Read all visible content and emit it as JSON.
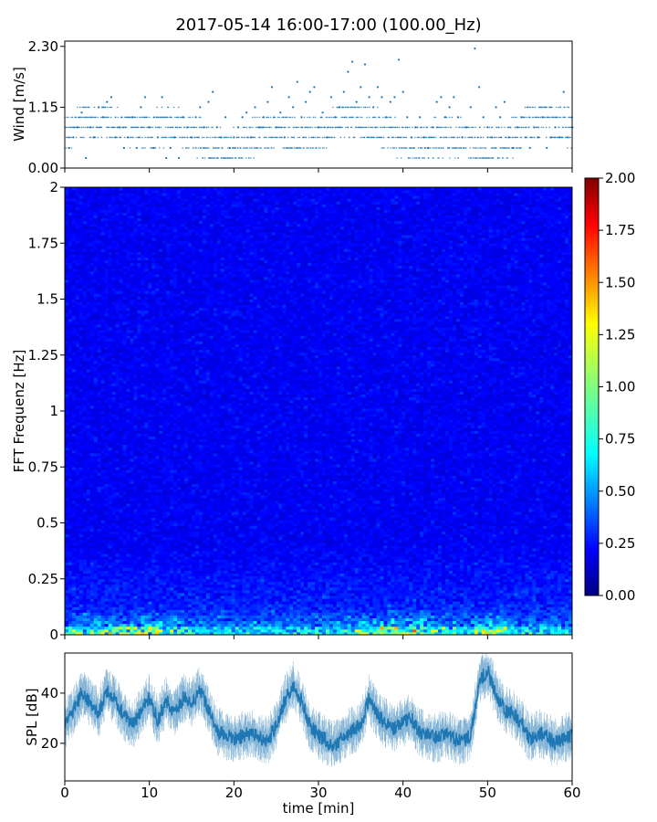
{
  "title": "2017-05-14 16:00-17:00 (100.00_Hz)",
  "chart_data": [
    {
      "type": "scatter",
      "name": "wind",
      "ylabel": "Wind [m/s]",
      "ylim": [
        0,
        2.4
      ],
      "xlim": [
        0,
        60
      ],
      "yticks": [
        0,
        1.15,
        2.3
      ],
      "ytick_labels": [
        "0.00",
        "1.15",
        "2.30"
      ],
      "color": "#1f77b4",
      "points": [
        [
          0.5,
          0.38
        ],
        [
          1.0,
          0.58
        ],
        [
          1.5,
          0.77
        ],
        [
          2.0,
          1.05
        ],
        [
          2.5,
          0.19
        ],
        [
          3.0,
          0.77
        ],
        [
          3.5,
          0.58
        ],
        [
          4.0,
          1.15
        ],
        [
          4.5,
          0.96
        ],
        [
          5.0,
          1.25
        ],
        [
          5.5,
          1.34
        ],
        [
          6.0,
          0.58
        ],
        [
          6.5,
          0.77
        ],
        [
          7.0,
          0.38
        ],
        [
          7.5,
          0.58
        ],
        [
          8.0,
          0.96
        ],
        [
          8.5,
          0.38
        ],
        [
          9.0,
          1.15
        ],
        [
          9.5,
          1.34
        ],
        [
          10.0,
          0.77
        ],
        [
          10.5,
          0.38
        ],
        [
          11.0,
          0.58
        ],
        [
          11.5,
          1.34
        ],
        [
          12.0,
          0.19
        ],
        [
          12.5,
          0.38
        ],
        [
          13.0,
          0.58
        ],
        [
          13.5,
          0.19
        ],
        [
          14.0,
          0.96
        ],
        [
          14.5,
          0.77
        ],
        [
          15.0,
          0.58
        ],
        [
          15.5,
          0.96
        ],
        [
          16.0,
          1.15
        ],
        [
          16.5,
          0.77
        ],
        [
          17.0,
          1.25
        ],
        [
          17.5,
          1.44
        ],
        [
          18.0,
          0.77
        ],
        [
          18.5,
          0.58
        ],
        [
          19.0,
          0.96
        ],
        [
          19.5,
          0.38
        ],
        [
          20.0,
          0.58
        ],
        [
          20.5,
          0.77
        ],
        [
          21.0,
          0.96
        ],
        [
          21.5,
          1.05
        ],
        [
          22.0,
          0.58
        ],
        [
          22.5,
          1.15
        ],
        [
          23.0,
          0.77
        ],
        [
          23.5,
          0.96
        ],
        [
          24.0,
          1.25
        ],
        [
          24.5,
          1.53
        ],
        [
          25.0,
          0.77
        ],
        [
          25.5,
          1.05
        ],
        [
          26.0,
          0.58
        ],
        [
          26.5,
          1.34
        ],
        [
          27.0,
          1.15
        ],
        [
          27.5,
          1.63
        ],
        [
          28.0,
          0.96
        ],
        [
          28.5,
          1.25
        ],
        [
          29.0,
          1.44
        ],
        [
          29.5,
          1.53
        ],
        [
          30.0,
          0.77
        ],
        [
          30.5,
          1.05
        ],
        [
          31.0,
          0.58
        ],
        [
          31.5,
          1.34
        ],
        [
          32.0,
          0.96
        ],
        [
          32.5,
          1.15
        ],
        [
          33.0,
          1.44
        ],
        [
          33.5,
          1.82
        ],
        [
          34.0,
          2.01
        ],
        [
          34.5,
          1.25
        ],
        [
          35.0,
          1.53
        ],
        [
          35.5,
          1.96
        ],
        [
          36.0,
          1.34
        ],
        [
          36.5,
          1.15
        ],
        [
          37.0,
          1.53
        ],
        [
          37.5,
          1.34
        ],
        [
          38.0,
          0.96
        ],
        [
          38.5,
          1.25
        ],
        [
          39.0,
          1.34
        ],
        [
          39.5,
          2.05
        ],
        [
          40.0,
          1.44
        ],
        [
          40.5,
          0.96
        ],
        [
          41.0,
          0.58
        ],
        [
          41.5,
          0.77
        ],
        [
          42.0,
          0.96
        ],
        [
          42.5,
          0.58
        ],
        [
          43.0,
          0.38
        ],
        [
          43.5,
          0.77
        ],
        [
          44.0,
          1.25
        ],
        [
          44.5,
          1.34
        ],
        [
          45.0,
          0.96
        ],
        [
          45.5,
          1.15
        ],
        [
          46.0,
          1.34
        ],
        [
          46.5,
          0.96
        ],
        [
          47.0,
          0.58
        ],
        [
          47.5,
          0.77
        ],
        [
          48.0,
          1.15
        ],
        [
          48.5,
          2.26
        ],
        [
          49.0,
          1.53
        ],
        [
          49.5,
          0.96
        ],
        [
          50.0,
          0.77
        ],
        [
          50.5,
          0.58
        ],
        [
          51.0,
          1.15
        ],
        [
          51.5,
          0.96
        ],
        [
          52.0,
          1.25
        ],
        [
          52.5,
          0.58
        ],
        [
          53.0,
          0.38
        ],
        [
          53.5,
          0.77
        ],
        [
          54.0,
          0.96
        ],
        [
          54.5,
          0.58
        ],
        [
          55.0,
          0.38
        ],
        [
          55.5,
          0.77
        ],
        [
          56.0,
          0.58
        ],
        [
          56.5,
          0.96
        ],
        [
          57.0,
          0.38
        ],
        [
          57.5,
          0.58
        ],
        [
          58.0,
          0.77
        ],
        [
          58.5,
          0.58
        ],
        [
          59.0,
          1.44
        ],
        [
          59.5,
          0.58
        ]
      ]
    },
    {
      "type": "heatmap",
      "name": "spectrogram",
      "ylabel": "FFT Frequenz [Hz]",
      "ylim": [
        0,
        2
      ],
      "xlim": [
        0,
        60
      ],
      "yticks": [
        0,
        0.25,
        0.5,
        0.75,
        1,
        1.25,
        1.5,
        1.75,
        2
      ],
      "ytick_labels": [
        "0",
        "0.25",
        "0.5",
        "0.75",
        "1",
        "1.25",
        "1.5",
        "1.75",
        "2"
      ],
      "colorbar": {
        "range": [
          0,
          2
        ],
        "ticks": [
          0,
          0.25,
          0.5,
          0.75,
          1,
          1.25,
          1.5,
          1.75,
          2
        ],
        "tick_labels": [
          "0.00",
          "0.25",
          "0.50",
          "0.75",
          "1.00",
          "1.25",
          "1.50",
          "1.75",
          "2.00"
        ],
        "colormap": "jet"
      }
    },
    {
      "type": "line",
      "name": "spl",
      "ylabel": "SPL [dB]",
      "xlabel": "time [min]",
      "xlim": [
        0,
        60
      ],
      "ylim": [
        5,
        56
      ],
      "yticks": [
        20,
        40
      ],
      "ytick_labels": [
        "20",
        "40"
      ],
      "xticks": [
        0,
        10,
        20,
        30,
        40,
        50,
        60
      ],
      "xtick_labels": [
        "0",
        "10",
        "20",
        "30",
        "40",
        "50",
        "60"
      ],
      "color": "#1f77b4",
      "x": [
        0,
        1,
        2,
        3,
        4,
        5,
        6,
        7,
        8,
        9,
        10,
        11,
        12,
        13,
        14,
        15,
        16,
        17,
        18,
        19,
        20,
        21,
        22,
        23,
        24,
        25,
        26,
        27,
        28,
        29,
        30,
        31,
        32,
        33,
        34,
        35,
        36,
        37,
        38,
        39,
        40,
        41,
        42,
        43,
        44,
        45,
        46,
        47,
        48,
        49,
        50,
        51,
        52,
        53,
        54,
        55,
        56,
        57,
        58,
        59,
        60
      ],
      "y": [
        27,
        33,
        40,
        36,
        32,
        41,
        37,
        31,
        27,
        33,
        38,
        29,
        37,
        32,
        38,
        36,
        41,
        33,
        25,
        23,
        22,
        23,
        24,
        22,
        21,
        27,
        37,
        43,
        37,
        27,
        23,
        21,
        19,
        23,
        25,
        27,
        38,
        31,
        28,
        26,
        28,
        30,
        24,
        23,
        22,
        24,
        22,
        21,
        23,
        45,
        49,
        40,
        33,
        32,
        28,
        22,
        24,
        23,
        20,
        22,
        23
      ]
    }
  ]
}
